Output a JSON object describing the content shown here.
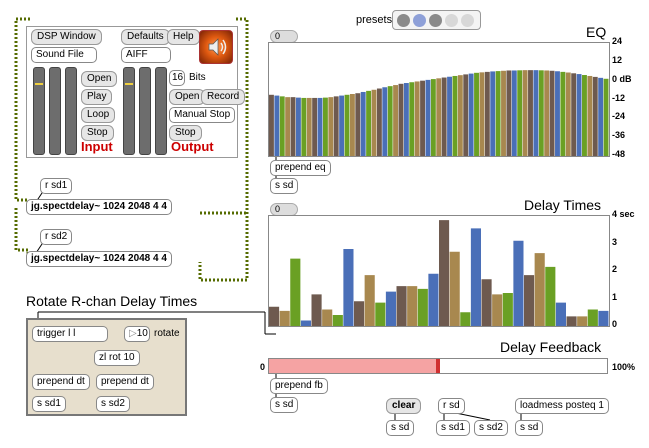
{
  "presets": {
    "label": "presets"
  },
  "dsp": {
    "dsp_window": "DSP Window",
    "defaults": "Defaults",
    "help": "Help",
    "sound_file": "Sound File",
    "format": "AIFF",
    "bits_value": "16",
    "bits_label": "Bits",
    "play_open": "Open",
    "play": "Play",
    "loop": "Loop",
    "play_stop": "Stop",
    "rec_open": "Open",
    "record": "Record",
    "manual_stop": "Manual Stop",
    "rec_stop": "Stop",
    "input_label": "Input",
    "output_label": "Output"
  },
  "left_objects": {
    "r_sd1": "r sd1",
    "spect1": "jg.spectdelay~ 1024 2048 4 4",
    "r_sd2": "r sd2",
    "spect2": "jg.spectdelay~ 1024 2048 4 4"
  },
  "rotate": {
    "title": "Rotate R-chan Delay Times",
    "trigger": "trigger l l",
    "number": "10",
    "rotate_label": "rotate",
    "zl_rot": "zl rot 10",
    "prepend_dt_1": "prepend dt",
    "prepend_dt_2": "prepend dt",
    "s_sd1": "s sd1",
    "s_sd2": "s sd2"
  },
  "eq": {
    "title": "EQ",
    "number": "0",
    "prepend": "prepend eq",
    "send": "s sd",
    "axis_labels": [
      "24",
      "12",
      "0 dB",
      "-12",
      "-24",
      "-36",
      "-48"
    ]
  },
  "delay_times": {
    "title": "Delay Times",
    "number": "0",
    "axis_labels": [
      "4 sec",
      "3",
      "2",
      "1",
      "0"
    ]
  },
  "feedback": {
    "title": "Delay Feedback",
    "min_label": "0",
    "max_label": "100%",
    "value_fraction": 0.5,
    "prepend": "prepend fb",
    "send": "s sd"
  },
  "bottom_objects": {
    "clear": "clear",
    "clear_send": "s sd",
    "r_sd": "r sd",
    "s_sd1": "s sd1",
    "s_sd2": "s sd2",
    "loadmess": "loadmess posteq 1",
    "loadmess_send": "s sd"
  },
  "chart_data": [
    {
      "type": "bar",
      "name": "EQ",
      "ylabel": "",
      "ylim": [
        -48,
        24
      ],
      "tick_labels": [
        "24",
        "12",
        "0 dB",
        "-12",
        "-24",
        "-36",
        "-48"
      ],
      "colors": [
        "#6e5a4f",
        "#4a6fb8",
        "#6aa024",
        "#a8884f"
      ],
      "values": [
        -9.0,
        -9.5,
        -10.0,
        -10.5,
        -10.5,
        -10.8,
        -11.0,
        -11.0,
        -11.0,
        -11.0,
        -10.8,
        -10.5,
        -10.0,
        -9.5,
        -9.0,
        -8.5,
        -8.0,
        -7.2,
        -6.5,
        -5.8,
        -5.0,
        -4.2,
        -3.5,
        -2.8,
        -2.0,
        -1.5,
        -1.0,
        -0.5,
        0.0,
        0.5,
        1.0,
        1.5,
        2.0,
        2.5,
        3.0,
        3.5,
        4.0,
        4.5,
        5.0,
        5.3,
        5.6,
        5.9,
        6.1,
        6.3,
        6.5,
        6.5,
        6.6,
        6.7,
        6.7,
        6.7,
        6.6,
        6.5,
        6.3,
        6.0,
        5.6,
        5.2,
        4.7,
        4.2,
        3.6,
        3.0,
        2.4,
        1.8,
        1.2
      ]
    },
    {
      "type": "bar",
      "name": "Delay Times",
      "ylim": [
        0,
        4
      ],
      "tick_labels": [
        "4 sec",
        "3",
        "2",
        "1",
        "0"
      ],
      "colors": [
        "#6e5a4f",
        "#a8884f",
        "#6aa024",
        "#4a6fb8"
      ],
      "values": [
        0.7,
        0.55,
        2.45,
        0.2,
        1.15,
        0.6,
        0.4,
        2.8,
        0.9,
        1.85,
        0.85,
        1.25,
        1.45,
        1.45,
        1.35,
        1.9,
        3.85,
        2.7,
        0.5,
        3.55,
        1.7,
        1.15,
        1.2,
        3.1,
        1.85,
        2.65,
        2.15,
        0.85,
        0.35,
        0.35,
        0.6,
        0.55
      ]
    }
  ]
}
